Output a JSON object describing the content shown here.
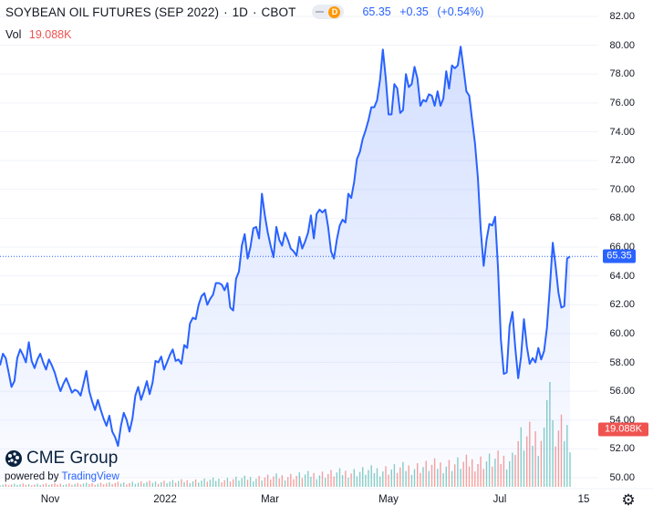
{
  "header": {
    "symbol": "SOYBEAN OIL FUTURES (SEP 2022)",
    "interval": "1D",
    "exchange": "CBOT",
    "delay_badge": "D",
    "last": "65.35",
    "change": "+0.35",
    "change_pct": "(+0.54%)"
  },
  "volume": {
    "label": "Vol",
    "value": "19.088K"
  },
  "branding": {
    "logo_text": "CME Group",
    "powered_prefix": "powered by",
    "powered_brand": "TradingView"
  },
  "price_tag": "65.35",
  "volume_tag": "19.088K",
  "colors": {
    "line": "#2962ff",
    "area_fill": "#2962ff",
    "volume_up": "#26a69a",
    "volume_down": "#ef5350",
    "price_tag": "#2962ff",
    "volume_tag": "#ef5350"
  },
  "chart_data": {
    "type": "area",
    "title": "SOYBEAN OIL FUTURES (SEP 2022)",
    "y_axis": {
      "ylim": [
        49,
        83
      ],
      "ticks": [
        "82.00",
        "80.00",
        "78.00",
        "76.00",
        "74.00",
        "72.00",
        "70.00",
        "68.00",
        "66.00",
        "64.00",
        "62.00",
        "60.00",
        "58.00",
        "56.00",
        "54.00",
        "52.00",
        "50.00"
      ],
      "position": "right"
    },
    "x_axis": {
      "ticks": [
        "Nov",
        "2022",
        "Mar",
        "May",
        "Jul",
        "15"
      ]
    },
    "last_price_line": 65.35,
    "series": [
      {
        "values": [
          57.8,
          58.6,
          58.3,
          57.3,
          56.3,
          56.7,
          58.3,
          58.9,
          58.5,
          58.0,
          59.4,
          58.1,
          57.6,
          58.2,
          58.6,
          58.0,
          57.5,
          58.2,
          57.8,
          57.3,
          56.6,
          56.0,
          56.5,
          56.9,
          56.4,
          55.9,
          56.1,
          56.0,
          55.7,
          56.5,
          57.4,
          56.0,
          55.3,
          54.7,
          55.4,
          54.7,
          54.1,
          53.6,
          54.3,
          53.2,
          52.8,
          52.2,
          53.6,
          54.5,
          54.0,
          53.2,
          54.1,
          55.7,
          56.3,
          55.4,
          56.0,
          56.7,
          55.8,
          56.6,
          58.1,
          58.0,
          58.4,
          57.5,
          58.0,
          58.5,
          58.9,
          58.1,
          58.2,
          57.9,
          59.2,
          59.0,
          60.7,
          61.1,
          61.0,
          62.0,
          62.6,
          62.8,
          62.0,
          62.4,
          62.7,
          63.5,
          63.5,
          63.4,
          63.0,
          63.5,
          61.8,
          61.6,
          63.8,
          64.3,
          66.1,
          66.9,
          65.2,
          66.0,
          67.3,
          67.4,
          66.6,
          69.7,
          68.2,
          67.0,
          66.1,
          65.3,
          67.4,
          66.5,
          66.1,
          67.0,
          66.5,
          65.9,
          65.7,
          65.4,
          66.7,
          65.9,
          66.4,
          67.0,
          68.2,
          66.6,
          68.3,
          68.6,
          68.4,
          68.6,
          67.4,
          65.7,
          65.2,
          66.5,
          67.5,
          67.9,
          67.7,
          69.7,
          69.4,
          70.5,
          72.1,
          72.6,
          73.5,
          74.1,
          74.8,
          75.7,
          75.7,
          76.2,
          77.6,
          79.7,
          77.7,
          75.2,
          75.2,
          77.3,
          77.0,
          75.3,
          75.5,
          78.0,
          77.1,
          77.3,
          78.5,
          77.7,
          75.8,
          76.2,
          76.1,
          76.6,
          76.5,
          75.8,
          76.8,
          75.8,
          76.3,
          78.2,
          77.0,
          78.6,
          78.4,
          78.6,
          79.9,
          78.4,
          76.8,
          76.5,
          74.8,
          73.2,
          70.8,
          67.2,
          64.7,
          66.5,
          67.6,
          67.5,
          68.1,
          64.5,
          59.6,
          57.2,
          57.3,
          60.5,
          61.5,
          59.0,
          56.9,
          58.4,
          61.0,
          59.1,
          57.9,
          58.3,
          58.0,
          59.0,
          58.2,
          58.8,
          60.4,
          63.2,
          66.3,
          64.7,
          62.8,
          61.8,
          61.9,
          65.2,
          65.35
        ]
      }
    ],
    "volume_series": {
      "label": "Vol",
      "last": "19.088K"
    }
  }
}
